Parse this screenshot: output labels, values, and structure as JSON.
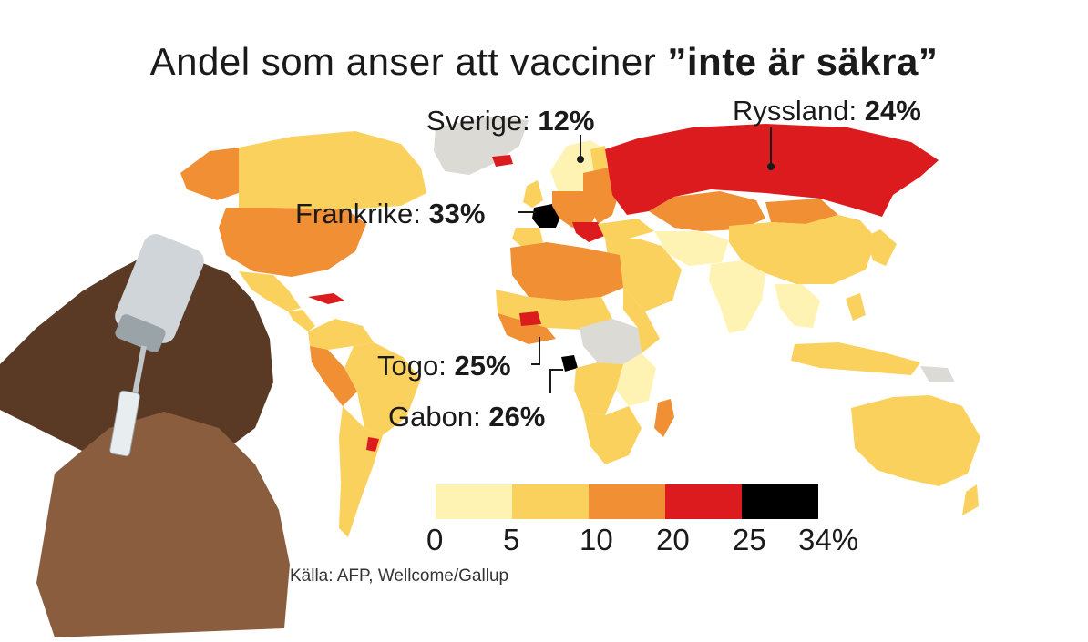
{
  "title": {
    "prefix": "Andel som anser att vacciner ",
    "emphasis": "”inte är säkra”"
  },
  "callouts": {
    "sweden": {
      "name": "Sverige:",
      "value": "12%"
    },
    "russia": {
      "name": "Ryssland:",
      "value": "24%"
    },
    "france": {
      "name": "Frankrike:",
      "value": "33%"
    },
    "togo": {
      "name": "Togo:",
      "value": "25%"
    },
    "gabon": {
      "name": "Gabon:",
      "value": "26%"
    }
  },
  "legend": {
    "bins": [
      {
        "from": 0,
        "to": 5,
        "color": "#fff3b3"
      },
      {
        "from": 5,
        "to": 10,
        "color": "#fbd15e"
      },
      {
        "from": 10,
        "to": 20,
        "color": "#f08f33"
      },
      {
        "from": 20,
        "to": 25,
        "color": "#dc1b1f"
      },
      {
        "from": 25,
        "to": 34,
        "color": "#000000"
      }
    ],
    "ticks": [
      "0",
      "5",
      "10",
      "20",
      "25",
      "34%"
    ]
  },
  "colors": {
    "no_data": "#dcdad5",
    "skin_dark": "#5a3a24",
    "skin_mid": "#8a5d3f",
    "vial_glass": "#cfd5d8"
  },
  "source": "Källa: AFP, Wellcome/Gallup"
}
